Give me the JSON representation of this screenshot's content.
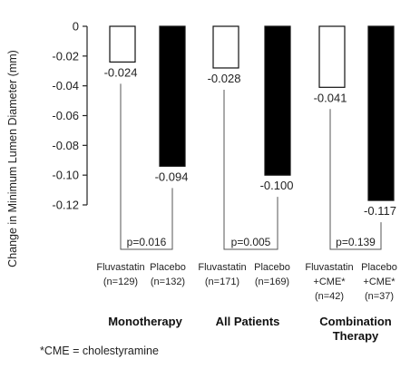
{
  "chart_data": {
    "type": "bar",
    "ylabel": "Change in Minimum Lumen Diameter (mm)",
    "ylim": [
      -0.12,
      0
    ],
    "yticks": [
      "0",
      "-0.02",
      "-0.04",
      "-0.06",
      "-0.08",
      "-0.10",
      "-0.12"
    ],
    "ytick_values": [
      0,
      -0.02,
      -0.04,
      -0.06,
      -0.08,
      -0.1,
      -0.12
    ],
    "groups": [
      {
        "label": [
          "Monotherapy"
        ],
        "p_value": "p=0.016",
        "bars": [
          {
            "series": "fluvastatin",
            "value": -0.024,
            "value_label": "-0.024",
            "label": [
              "Fluvastatin",
              "(n=129)"
            ]
          },
          {
            "series": "placebo",
            "value": -0.094,
            "value_label": "-0.094",
            "label": [
              "Placebo",
              "(n=132)"
            ]
          }
        ]
      },
      {
        "label": [
          "All Patients"
        ],
        "p_value": "p=0.005",
        "bars": [
          {
            "series": "fluvastatin",
            "value": -0.028,
            "value_label": "-0.028",
            "label": [
              "Fluvastatin",
              "(n=171)"
            ]
          },
          {
            "series": "placebo",
            "value": -0.1,
            "value_label": "-0.100",
            "label": [
              "Placebo",
              "(n=169)"
            ]
          }
        ]
      },
      {
        "label": [
          "Combination",
          "Therapy"
        ],
        "p_value": "p=0.139",
        "bars": [
          {
            "series": "fluvastatin",
            "value": -0.041,
            "value_label": "-0.041",
            "label": [
              "Fluvastatin",
              "+CME*",
              "(n=42)"
            ]
          },
          {
            "series": "placebo",
            "value": -0.117,
            "value_label": "-0.117",
            "label": [
              "Placebo",
              "+CME*",
              "(n=37)"
            ]
          }
        ]
      }
    ],
    "colors": {
      "fluvastatin": "#ffffff",
      "placebo": "#000000"
    },
    "footnote": "*CME = cholestyramine"
  }
}
